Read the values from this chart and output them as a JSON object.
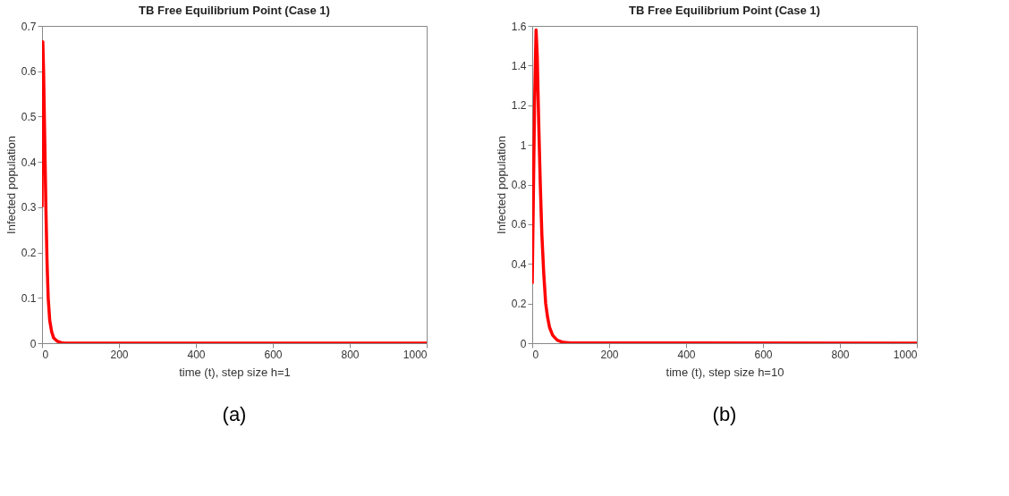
{
  "chart_data": [
    {
      "type": "line",
      "title": "TB Free Equilibrium Point (Case 1)",
      "xlabel": "time (t), step size h=1",
      "ylabel": "Infected population",
      "xlim": [
        0,
        1000
      ],
      "ylim": [
        0,
        0.7
      ],
      "xticks": [
        0,
        200,
        400,
        600,
        800,
        1000
      ],
      "yticks": [
        0,
        0.1,
        0.2,
        0.3,
        0.4,
        0.5,
        0.6,
        0.7
      ],
      "annotations": [
        "(a)"
      ],
      "series": [
        {
          "color": "#ff0000",
          "x": [
            0,
            1,
            2,
            4,
            7,
            10,
            13,
            16,
            20,
            25,
            30,
            40,
            50,
            60,
            1000
          ],
          "values": [
            0.3,
            0.55,
            0.665,
            0.6,
            0.45,
            0.3,
            0.18,
            0.1,
            0.05,
            0.025,
            0.012,
            0.004,
            0.001,
            0,
            0
          ]
        }
      ]
    },
    {
      "type": "line",
      "title": "TB Free Equilibrium Point (Case 1)",
      "xlabel": "time (t), step size h=10",
      "ylabel": "Infected population",
      "xlim": [
        0,
        1000
      ],
      "ylim": [
        0,
        1.6
      ],
      "xticks": [
        0,
        200,
        400,
        600,
        800,
        1000
      ],
      "yticks": [
        0,
        0.2,
        0.4,
        0.6,
        0.8,
        1,
        1.2,
        1.4,
        1.6
      ],
      "annotations": [
        "(b)"
      ],
      "series": [
        {
          "color": "#ff0000",
          "x": [
            0,
            3,
            6,
            10,
            13,
            17,
            21,
            25,
            30,
            35,
            40,
            45,
            53,
            65,
            80,
            100,
            1000
          ],
          "values": [
            0.3,
            0.75,
            1.2,
            1.58,
            1.45,
            1.1,
            0.8,
            0.55,
            0.35,
            0.2,
            0.13,
            0.08,
            0.04,
            0.015,
            0.004,
            0.001,
            0
          ]
        }
      ]
    }
  ]
}
